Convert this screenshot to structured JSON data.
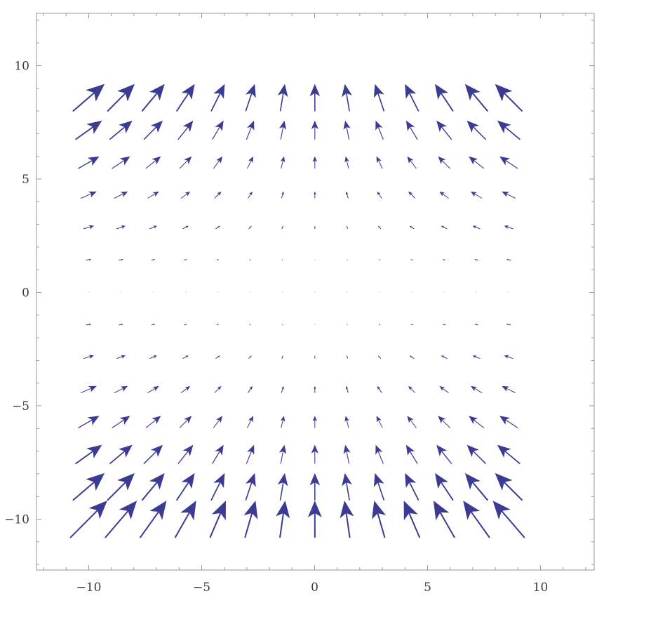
{
  "chart_data": {
    "type": "vector-field",
    "title": "",
    "xlabel": "",
    "ylabel": "",
    "xlim": [
      -12.2,
      12.2
    ],
    "ylim": [
      -12.2,
      12.2
    ],
    "x_ticks": [
      -10,
      -5,
      0,
      5,
      10
    ],
    "y_ticks": [
      -10,
      -5,
      0,
      5,
      10
    ],
    "x_tick_labels": [
      "−10",
      "−5",
      "0",
      "5",
      "10"
    ],
    "y_tick_labels": [
      "−10",
      "−5",
      "0",
      "5",
      "10"
    ],
    "grid": false,
    "frame": true,
    "arrow_color": "#3b3b94",
    "field": {
      "x_start": -10,
      "x_step": 1.43,
      "nx": 14,
      "y_start": -10,
      "y_step": 1.43,
      "ny": 14,
      "u": "-0.011*x*|y|",
      "v": "0.011*y^2"
    }
  }
}
